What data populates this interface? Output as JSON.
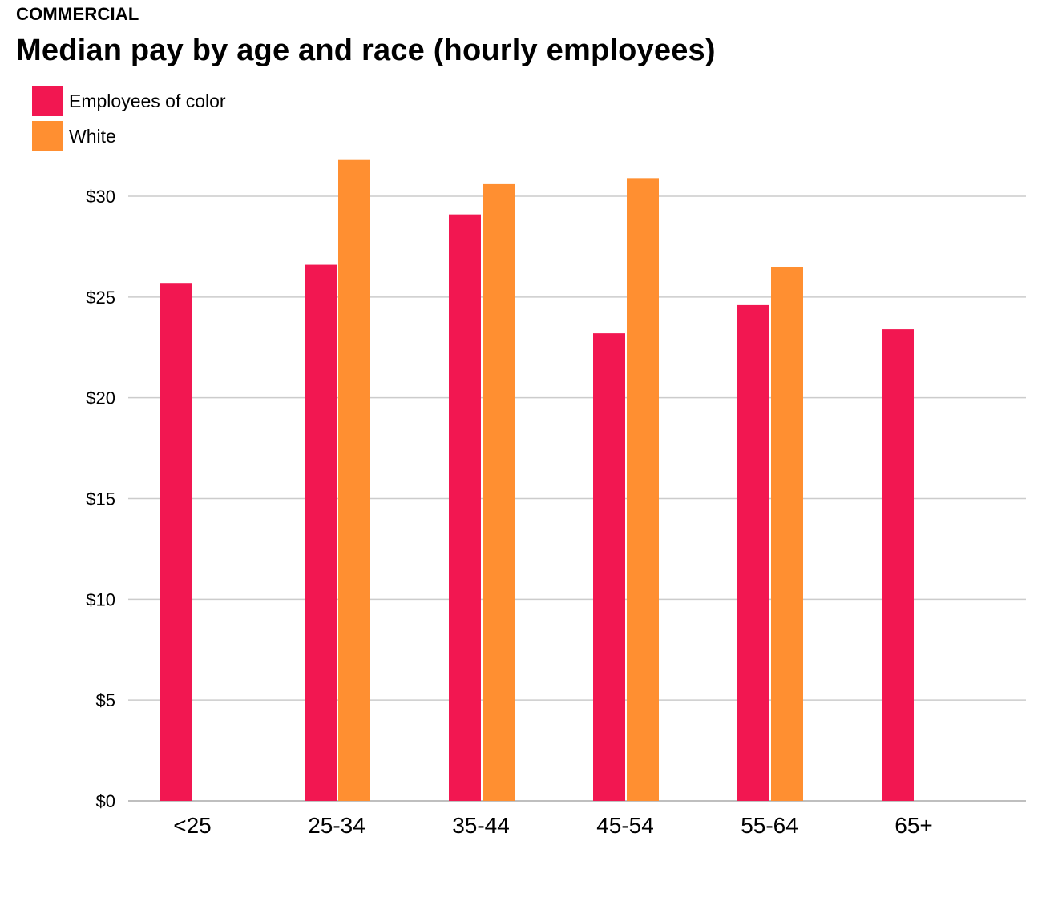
{
  "header": {
    "kicker": "COMMERCIAL",
    "title": "Median pay by age and race (hourly employees)"
  },
  "colors": {
    "employees_of_color": "#f21751",
    "white": "#ff8f31",
    "grid": "#cccccc",
    "axis": "#aaaaaa"
  },
  "chart_data": {
    "type": "bar",
    "title": "Median pay by age and race (hourly employees)",
    "categories": [
      "<25",
      "25-34",
      "35-44",
      "45-54",
      "55-64",
      "65+"
    ],
    "series": [
      {
        "name": "Employees of color",
        "color": "#f21751",
        "values": [
          25.7,
          26.6,
          29.1,
          23.2,
          24.6,
          23.4
        ]
      },
      {
        "name": "White",
        "color": "#ff8f31",
        "values": [
          null,
          31.8,
          30.6,
          30.9,
          26.5,
          null
        ]
      }
    ],
    "ylim": [
      0,
      30
    ],
    "yticks": [
      0,
      5,
      10,
      15,
      20,
      25,
      30
    ],
    "ytick_labels": [
      "$0",
      "$5",
      "$10",
      "$15",
      "$20",
      "$25",
      "$30"
    ],
    "xlabel": "",
    "ylabel": "",
    "grid": true,
    "legend": "top-left"
  }
}
